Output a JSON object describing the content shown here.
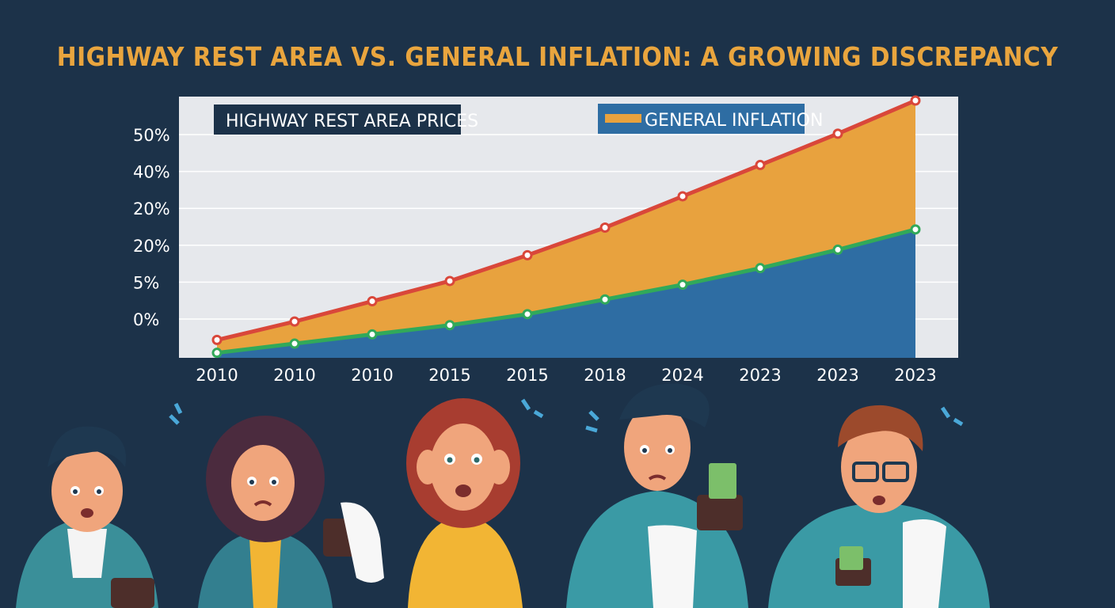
{
  "chart_data": {
    "type": "area",
    "title": "HIGHWAY REST AREA VS. GENERAL INFLATION: A GROWING DISCREPANCY",
    "categories": [
      "2010",
      "2010",
      "2010",
      "2015",
      "2015",
      "2018",
      "2024",
      "2023",
      "2023",
      "2023"
    ],
    "y_tick_labels": [
      "50%",
      "40%",
      "20%",
      "20%",
      "5%",
      "0%"
    ],
    "ylim": [
      -1.0,
      5.9
    ],
    "series": [
      {
        "name": "HIGHWAY REST AREA PRICES",
        "color": "#e8a23e",
        "line_color": "#d9473a",
        "values": [
          -0.6,
          -0.1,
          0.45,
          1.0,
          1.7,
          2.45,
          3.3,
          4.15,
          5.0,
          5.9
        ]
      },
      {
        "name": "GENERAL INFLATION",
        "color": "#2e6da3",
        "line_color": "#31a95a",
        "values": [
          -0.95,
          -0.7,
          -0.45,
          -0.2,
          0.1,
          0.5,
          0.9,
          1.35,
          1.85,
          2.4
        ]
      }
    ],
    "legend": [
      {
        "label": "HIGHWAY REST AREA PRICES",
        "position": "top-left"
      },
      {
        "label": "GENERAL INFLATION",
        "position": "top-center"
      }
    ],
    "grid": true
  },
  "colors": {
    "background": "#1c3249",
    "plot_bg": "#e6e8ec",
    "title": "#e9a53e"
  },
  "illustration": {
    "description_icon": "worried-people-with-receipts-icon"
  }
}
